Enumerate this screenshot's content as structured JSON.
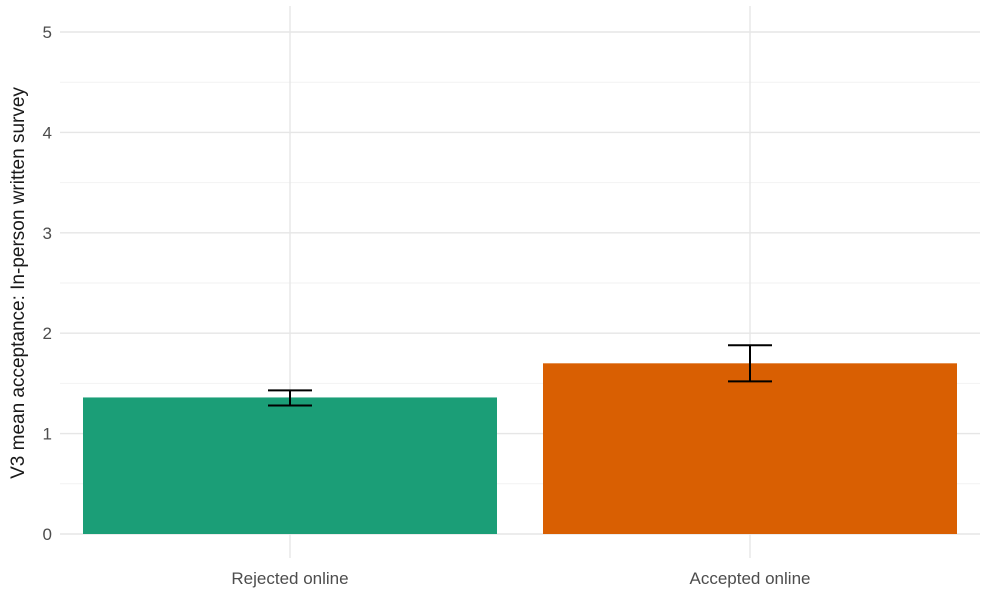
{
  "chart_data": {
    "type": "bar",
    "title": "",
    "xlabel": "",
    "ylabel": "V3 mean acceptance: In-person written survey",
    "categories": [
      "Rejected online",
      "Accepted online"
    ],
    "values": [
      1.36,
      1.7
    ],
    "error_bars": [
      {
        "low": 1.28,
        "high": 1.43
      },
      {
        "low": 1.52,
        "high": 1.88
      }
    ],
    "colors": [
      "#1b9e77",
      "#d95f02"
    ],
    "ylim": [
      0,
      5.2
    ],
    "y_ticks": [
      0,
      1,
      2,
      3,
      4,
      5
    ],
    "y_tick_labels": [
      "0",
      "1",
      "2",
      "3",
      "4",
      "5"
    ],
    "grid": true,
    "legend": "none"
  }
}
